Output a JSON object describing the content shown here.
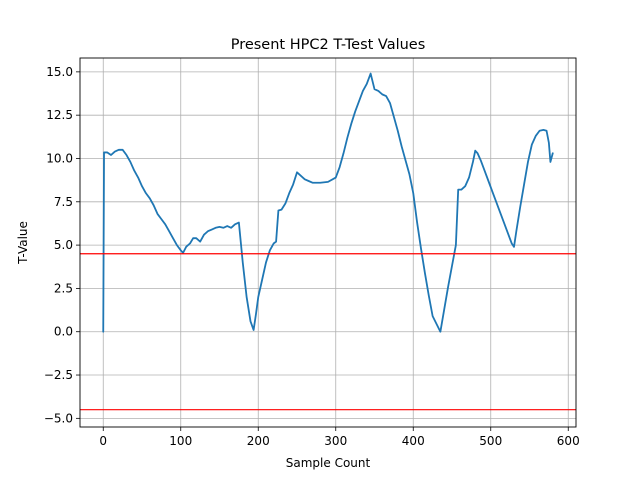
{
  "chart_data": {
    "type": "line",
    "title": "Present HPC2 T-Test Values",
    "xlabel": "Sample Count",
    "ylabel": "T-Value",
    "xlim": [
      -30,
      610
    ],
    "ylim": [
      -5.5,
      15.8
    ],
    "xticks": [
      0,
      100,
      200,
      300,
      400,
      500,
      600
    ],
    "xtick_labels": [
      "0",
      "100",
      "200",
      "300",
      "400",
      "500",
      "600"
    ],
    "yticks": [
      -5.0,
      -2.5,
      0.0,
      2.5,
      5.0,
      7.5,
      10.0,
      12.5,
      15.0
    ],
    "ytick_labels": [
      "−5.0",
      "−2.5",
      "0.0",
      "2.5",
      "5.0",
      "7.5",
      "10.0",
      "12.5",
      "15.0"
    ],
    "grid": true,
    "series": [
      {
        "color": "#1f77b4",
        "points": [
          [
            0,
            0.0
          ],
          [
            1,
            10.35
          ],
          [
            5,
            10.35
          ],
          [
            10,
            10.2
          ],
          [
            15,
            10.4
          ],
          [
            20,
            10.5
          ],
          [
            25,
            10.5
          ],
          [
            30,
            10.2
          ],
          [
            35,
            9.8
          ],
          [
            40,
            9.3
          ],
          [
            45,
            8.9
          ],
          [
            50,
            8.4
          ],
          [
            55,
            8.0
          ],
          [
            60,
            7.7
          ],
          [
            65,
            7.3
          ],
          [
            70,
            6.8
          ],
          [
            75,
            6.5
          ],
          [
            80,
            6.2
          ],
          [
            85,
            5.8
          ],
          [
            90,
            5.4
          ],
          [
            95,
            5.0
          ],
          [
            100,
            4.7
          ],
          [
            103,
            4.55
          ],
          [
            107,
            4.9
          ],
          [
            112,
            5.1
          ],
          [
            116,
            5.4
          ],
          [
            120,
            5.4
          ],
          [
            125,
            5.2
          ],
          [
            130,
            5.6
          ],
          [
            135,
            5.8
          ],
          [
            140,
            5.9
          ],
          [
            145,
            6.0
          ],
          [
            150,
            6.05
          ],
          [
            155,
            6.0
          ],
          [
            160,
            6.1
          ],
          [
            165,
            6.0
          ],
          [
            170,
            6.2
          ],
          [
            175,
            6.3
          ],
          [
            180,
            4.0
          ],
          [
            185,
            2.0
          ],
          [
            190,
            0.6
          ],
          [
            194,
            0.1
          ],
          [
            197,
            1.0
          ],
          [
            200,
            2.0
          ],
          [
            205,
            3.0
          ],
          [
            210,
            4.0
          ],
          [
            215,
            4.7
          ],
          [
            220,
            5.1
          ],
          [
            223,
            5.2
          ],
          [
            226,
            7.0
          ],
          [
            230,
            7.05
          ],
          [
            235,
            7.4
          ],
          [
            240,
            8.0
          ],
          [
            245,
            8.5
          ],
          [
            250,
            9.2
          ],
          [
            255,
            9.0
          ],
          [
            260,
            8.8
          ],
          [
            265,
            8.7
          ],
          [
            270,
            8.6
          ],
          [
            280,
            8.6
          ],
          [
            290,
            8.65
          ],
          [
            300,
            8.9
          ],
          [
            305,
            9.5
          ],
          [
            310,
            10.3
          ],
          [
            315,
            11.2
          ],
          [
            320,
            12.0
          ],
          [
            325,
            12.7
          ],
          [
            330,
            13.3
          ],
          [
            335,
            13.9
          ],
          [
            340,
            14.3
          ],
          [
            345,
            14.9
          ],
          [
            350,
            14.0
          ],
          [
            355,
            13.9
          ],
          [
            360,
            13.7
          ],
          [
            365,
            13.6
          ],
          [
            370,
            13.2
          ],
          [
            375,
            12.4
          ],
          [
            380,
            11.6
          ],
          [
            385,
            10.7
          ],
          [
            390,
            9.9
          ],
          [
            395,
            9.1
          ],
          [
            400,
            8.0
          ],
          [
            405,
            6.3
          ],
          [
            410,
            4.8
          ],
          [
            415,
            3.4
          ],
          [
            420,
            2.1
          ],
          [
            425,
            0.9
          ],
          [
            435,
            0.0
          ],
          [
            440,
            1.3
          ],
          [
            445,
            2.6
          ],
          [
            450,
            3.8
          ],
          [
            455,
            5.0
          ],
          [
            458,
            8.2
          ],
          [
            462,
            8.2
          ],
          [
            467,
            8.4
          ],
          [
            472,
            8.9
          ],
          [
            477,
            9.8
          ],
          [
            480,
            10.45
          ],
          [
            483,
            10.3
          ],
          [
            487,
            9.9
          ],
          [
            492,
            9.3
          ],
          [
            497,
            8.7
          ],
          [
            502,
            8.1
          ],
          [
            507,
            7.5
          ],
          [
            512,
            6.9
          ],
          [
            517,
            6.3
          ],
          [
            522,
            5.7
          ],
          [
            527,
            5.1
          ],
          [
            530,
            4.9
          ],
          [
            533,
            5.8
          ],
          [
            538,
            7.2
          ],
          [
            543,
            8.5
          ],
          [
            548,
            9.8
          ],
          [
            553,
            10.8
          ],
          [
            558,
            11.3
          ],
          [
            563,
            11.6
          ],
          [
            568,
            11.65
          ],
          [
            572,
            11.6
          ],
          [
            575,
            10.9
          ],
          [
            577,
            9.8
          ],
          [
            580,
            10.3
          ]
        ]
      }
    ],
    "hlines": [
      {
        "y": 4.5,
        "color": "#ff0000"
      },
      {
        "y": -4.5,
        "color": "#ff0000"
      }
    ]
  }
}
